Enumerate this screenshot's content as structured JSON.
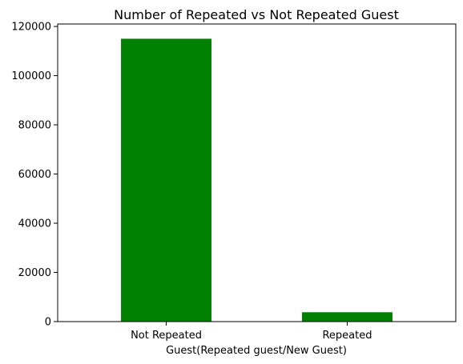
{
  "chart_data": {
    "type": "bar",
    "title": "Number of Repeated vs Not Repeated Guest",
    "xlabel": "Guest(Repeated guest/New Guest)",
    "ylabel": "",
    "categories": [
      "Not Repeated",
      "Repeated"
    ],
    "values": [
      115000,
      3800
    ],
    "ylim": [
      0,
      121000
    ],
    "yticks": [
      0,
      20000,
      40000,
      60000,
      80000,
      100000,
      120000
    ],
    "bar_color": "#008000",
    "grid": false,
    "legend": "none"
  }
}
